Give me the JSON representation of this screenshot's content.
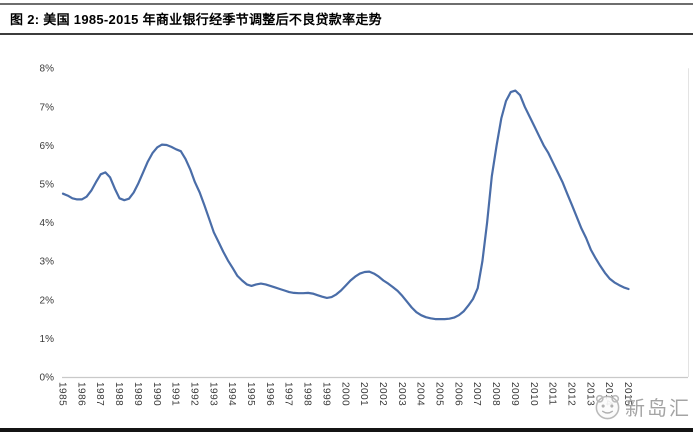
{
  "figure": {
    "title": "图 2: 美国 1985-2015 年商业银行经季节调整后不良贷款率走势"
  },
  "watermark": {
    "text": "新岛汇",
    "logo": "round-face-logo"
  },
  "colors": {
    "line": "#4a6da8",
    "axis_line": "#c9c9c9",
    "plot_border": "#e3e3e3",
    "tick_text": "#3a3a3a",
    "title_text": "#000000",
    "watermark_text": "#9b9b9b",
    "background": "#ffffff"
  },
  "chart_data": {
    "type": "line",
    "title": "美国 1985-2015 年商业银行经季节调整后不良贷款率走势",
    "xlabel": "",
    "ylabel": "",
    "xlim": [
      1985,
      2015
    ],
    "ylim": [
      0,
      8
    ],
    "grid": false,
    "legend_position": "none",
    "y_tick_labels": [
      "0%",
      "1%",
      "2%",
      "3%",
      "4%",
      "5%",
      "6%",
      "7%",
      "8%"
    ],
    "x_tick_labels": [
      "1985",
      "1986",
      "1987",
      "1988",
      "1989",
      "1990",
      "1991",
      "1992",
      "1993",
      "1994",
      "1995",
      "1996",
      "1997",
      "1998",
      "1999",
      "2000",
      "2001",
      "2002",
      "2003",
      "2004",
      "2005",
      "2006",
      "2007",
      "2008",
      "2009",
      "2010",
      "2011",
      "2012",
      "2013",
      "2014",
      "2015"
    ],
    "series": [
      {
        "name": "商业银行经季节调整后不良贷款率",
        "color": "#4a6da8",
        "x": [
          1985,
          1985.25,
          1985.5,
          1985.75,
          1986,
          1986.25,
          1986.5,
          1986.75,
          1987,
          1987.25,
          1987.5,
          1987.75,
          1988,
          1988.25,
          1988.5,
          1988.75,
          1989,
          1989.25,
          1989.5,
          1989.75,
          1990,
          1990.25,
          1990.5,
          1990.75,
          1991,
          1991.25,
          1991.5,
          1991.75,
          1992,
          1992.25,
          1992.5,
          1992.75,
          1993,
          1993.25,
          1993.5,
          1993.75,
          1994,
          1994.25,
          1994.5,
          1994.75,
          1995,
          1995.25,
          1995.5,
          1995.75,
          1996,
          1996.25,
          1996.5,
          1996.75,
          1997,
          1997.25,
          1997.5,
          1997.75,
          1998,
          1998.25,
          1998.5,
          1998.75,
          1999,
          1999.25,
          1999.5,
          1999.75,
          2000,
          2000.25,
          2000.5,
          2000.75,
          2001,
          2001.25,
          2001.5,
          2001.75,
          2002,
          2002.25,
          2002.5,
          2002.75,
          2003,
          2003.25,
          2003.5,
          2003.75,
          2004,
          2004.25,
          2004.5,
          2004.75,
          2005,
          2005.25,
          2005.5,
          2005.75,
          2006,
          2006.25,
          2006.5,
          2006.75,
          2007,
          2007.25,
          2007.5,
          2007.75,
          2008,
          2008.25,
          2008.5,
          2008.75,
          2009,
          2009.25,
          2009.5,
          2009.75,
          2010,
          2010.25,
          2010.5,
          2010.75,
          2011,
          2011.25,
          2011.5,
          2011.75,
          2012,
          2012.25,
          2012.5,
          2012.75,
          2013,
          2013.25,
          2013.5,
          2013.75,
          2014,
          2014.25,
          2014.5,
          2014.75,
          2015
        ],
        "values": [
          4.75,
          4.7,
          4.63,
          4.6,
          4.6,
          4.67,
          4.83,
          5.05,
          5.25,
          5.3,
          5.17,
          4.88,
          4.63,
          4.58,
          4.62,
          4.78,
          5.02,
          5.3,
          5.58,
          5.8,
          5.95,
          6.02,
          6.01,
          5.96,
          5.9,
          5.85,
          5.65,
          5.38,
          5.05,
          4.78,
          4.45,
          4.1,
          3.75,
          3.5,
          3.25,
          3.02,
          2.82,
          2.62,
          2.5,
          2.4,
          2.36,
          2.4,
          2.42,
          2.4,
          2.36,
          2.32,
          2.28,
          2.24,
          2.2,
          2.18,
          2.17,
          2.17,
          2.18,
          2.16,
          2.12,
          2.08,
          2.05,
          2.07,
          2.14,
          2.24,
          2.37,
          2.5,
          2.6,
          2.68,
          2.72,
          2.73,
          2.68,
          2.6,
          2.5,
          2.42,
          2.33,
          2.23,
          2.1,
          1.95,
          1.8,
          1.68,
          1.6,
          1.55,
          1.52,
          1.5,
          1.5,
          1.5,
          1.51,
          1.54,
          1.6,
          1.7,
          1.85,
          2.02,
          2.3,
          3.0,
          4.0,
          5.2,
          6.0,
          6.7,
          7.15,
          7.38,
          7.42,
          7.3,
          7.0,
          6.75,
          6.5,
          6.25,
          6.0,
          5.8,
          5.55,
          5.3,
          5.05,
          4.75,
          4.45,
          4.15,
          3.85,
          3.6,
          3.3,
          3.08,
          2.88,
          2.7,
          2.55,
          2.45,
          2.38,
          2.32,
          2.28
        ]
      }
    ]
  }
}
